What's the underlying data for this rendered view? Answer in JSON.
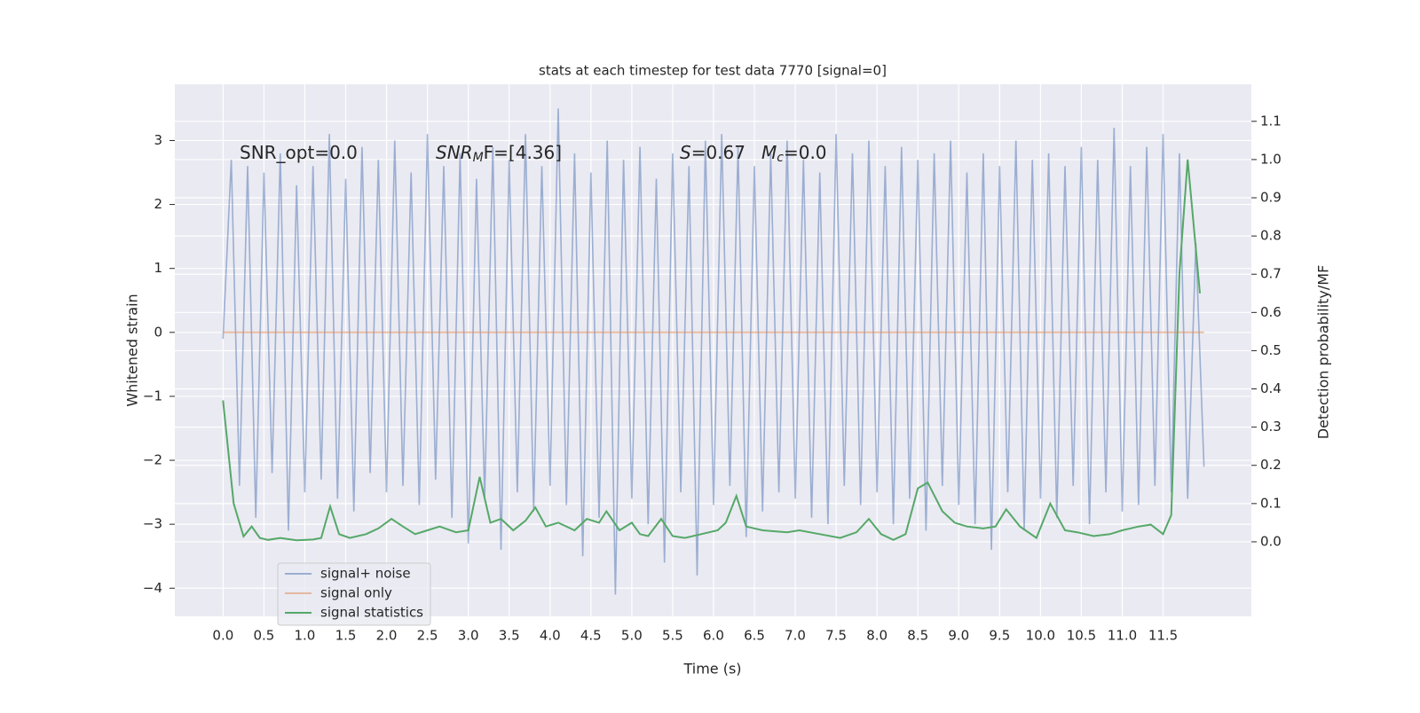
{
  "chart_data": {
    "type": "line",
    "title": "stats at each timestep for test data 7770 [signal=0]",
    "xlabel": "Time (s)",
    "ylabel": "Whitened strain",
    "y2label": "Detection probability/MF",
    "annotations": [
      {
        "text": "SNR_opt=0.0"
      },
      {
        "base": "SNR",
        "sub": "M",
        "rest": "F=[4.36]"
      },
      {
        "base": "S",
        "rest": "=0.67"
      },
      {
        "base": "M",
        "sub": "c",
        "rest": "=0.0"
      }
    ],
    "xlim": [
      -0.59,
      12.58
    ],
    "ylim": [
      -4.44,
      3.88
    ],
    "y2lim": [
      -0.195,
      1.197
    ],
    "xticks": [
      {
        "value": 0,
        "label": "0.0"
      },
      0.5,
      {
        "value": 1,
        "label": "1.0"
      },
      1.5,
      {
        "value": 2,
        "label": "2.0"
      },
      2.5,
      {
        "value": 3,
        "label": "3.0"
      },
      3.5,
      {
        "value": 4,
        "label": "4.0"
      },
      4.5,
      {
        "value": 5,
        "label": "5.0"
      },
      5.5,
      {
        "value": 6,
        "label": "6.0"
      },
      6.5,
      {
        "value": 7,
        "label": "7.0"
      },
      7.5,
      {
        "value": 8,
        "label": "8.0"
      },
      8.5,
      {
        "value": 9,
        "label": "9.0"
      },
      9.5,
      {
        "value": 10,
        "label": "10.0"
      },
      10.5,
      {
        "value": 11,
        "label": "11.0"
      },
      11.5
    ],
    "yticks": [
      {
        "value": -4,
        "label": "−4"
      },
      {
        "value": -3,
        "label": "−3"
      },
      {
        "value": -2,
        "label": "−2"
      },
      {
        "value": -1,
        "label": "−1"
      },
      0,
      1,
      2,
      3
    ],
    "y2ticks": [
      {
        "value": 0,
        "label": "0.0"
      },
      0.1,
      0.2,
      0.3,
      0.4,
      0.5,
      0.6,
      0.7,
      0.8,
      0.9,
      {
        "value": 1,
        "label": "1.0"
      },
      1.1
    ],
    "grid": true,
    "legend": "lower left",
    "series": [
      {
        "name": "signal+ noise",
        "color": "#4c72b0",
        "opacity": 0.5,
        "axis": "y",
        "x": [
          0,
          0.1,
          0.2,
          0.3,
          0.4,
          0.5,
          0.6,
          0.7,
          0.8,
          0.9,
          1,
          1.1,
          1.2,
          1.3,
          1.4,
          1.5,
          1.6,
          1.7,
          1.8,
          1.9,
          2,
          2.1,
          2.2,
          2.3,
          2.4,
          2.5,
          2.6,
          2.7,
          2.8,
          2.9,
          3,
          3.1,
          3.2,
          3.3,
          3.4,
          3.5,
          3.6,
          3.7,
          3.8,
          3.9,
          4,
          4.1,
          4.2,
          4.3,
          4.4,
          4.5,
          4.6,
          4.7,
          4.8,
          4.9,
          5,
          5.1,
          5.2,
          5.3,
          5.4,
          5.5,
          5.6,
          5.7,
          5.8,
          5.9,
          6,
          6.1,
          6.2,
          6.3,
          6.4,
          6.5,
          6.6,
          6.7,
          6.8,
          6.9,
          7,
          7.1,
          7.2,
          7.3,
          7.4,
          7.5,
          7.6,
          7.7,
          7.8,
          7.9,
          8,
          8.1,
          8.2,
          8.3,
          8.4,
          8.5,
          8.6,
          8.7,
          8.8,
          8.9,
          9,
          9.1,
          9.2,
          9.3,
          9.4,
          9.5,
          9.6,
          9.7,
          9.8,
          9.9,
          10,
          10.1,
          10.2,
          10.3,
          10.4,
          10.5,
          10.6,
          10.7,
          10.8,
          10.9,
          11,
          11.1,
          11.2,
          11.3,
          11.4,
          11.5,
          11.6,
          11.7,
          11.8,
          11.9,
          12
        ],
        "values": [
          -0.1,
          2.7,
          -2.4,
          2.6,
          -2.9,
          2.5,
          -2.2,
          2.8,
          -3.1,
          2.3,
          -2.5,
          2.6,
          -2.3,
          3.1,
          -2.6,
          2.4,
          -2.8,
          2.9,
          -2.2,
          2.7,
          -2.5,
          3.0,
          -2.4,
          2.5,
          -2.7,
          3.1,
          -2.3,
          2.6,
          -2.9,
          2.8,
          -3.3,
          2.4,
          -2.6,
          2.9,
          -3.4,
          2.7,
          -2.5,
          3.1,
          -2.8,
          2.6,
          -2.4,
          3.5,
          -2.7,
          2.8,
          -3.5,
          2.5,
          -2.9,
          3.0,
          -4.1,
          2.7,
          -2.6,
          2.9,
          -3.0,
          2.4,
          -3.6,
          2.8,
          -2.5,
          2.6,
          -3.8,
          3.0,
          -2.7,
          3.1,
          -2.4,
          2.9,
          -3.2,
          2.6,
          -2.8,
          2.8,
          -2.5,
          3.0,
          -2.6,
          2.7,
          -2.9,
          2.5,
          -3.0,
          3.1,
          -2.4,
          2.8,
          -2.7,
          3.0,
          -2.5,
          2.6,
          -3.0,
          2.9,
          -2.6,
          2.7,
          -3.1,
          2.8,
          -2.4,
          3.0,
          -2.7,
          2.5,
          -3.0,
          2.8,
          -3.4,
          2.6,
          -2.5,
          3.0,
          -3.1,
          2.7,
          -2.6,
          2.8,
          -2.9,
          2.6,
          -2.4,
          2.9,
          -3.0,
          2.7,
          -2.5,
          3.2,
          -2.8,
          2.6,
          -2.7,
          2.9,
          -2.4,
          3.1,
          -2.5,
          2.8,
          -2.6,
          1.4,
          -2.1
        ]
      },
      {
        "name": "signal only",
        "color": "#dd8452",
        "opacity": 0.5,
        "axis": "y",
        "x": [
          0,
          12
        ],
        "values": [
          0,
          0
        ]
      },
      {
        "name": "signal statistics",
        "color": "#55a868",
        "opacity": 1,
        "axis": "y2",
        "x": [
          0,
          0.13,
          0.25,
          0.35,
          0.45,
          0.55,
          0.7,
          0.9,
          1.1,
          1.2,
          1.31,
          1.42,
          1.55,
          1.75,
          1.9,
          2.06,
          2.2,
          2.35,
          2.5,
          2.65,
          2.85,
          3.0,
          3.14,
          3.27,
          3.4,
          3.55,
          3.7,
          3.82,
          3.95,
          4.1,
          4.3,
          4.45,
          4.6,
          4.69,
          4.85,
          5.0,
          5.1,
          5.2,
          5.36,
          5.5,
          5.65,
          5.85,
          6.05,
          6.15,
          6.28,
          6.4,
          6.6,
          6.9,
          7.05,
          7.3,
          7.55,
          7.75,
          7.9,
          8.05,
          8.2,
          8.35,
          8.5,
          8.62,
          8.8,
          8.95,
          9.1,
          9.3,
          9.45,
          9.58,
          9.75,
          9.95,
          10.12,
          10.3,
          10.45,
          10.65,
          10.85,
          11.0,
          11.2,
          11.35,
          11.5,
          11.6,
          11.7,
          11.8,
          11.95
        ],
        "values": [
          0.37,
          0.1,
          0.014,
          0.04,
          0.01,
          0.005,
          0.01,
          0.004,
          0.006,
          0.01,
          0.093,
          0.02,
          0.01,
          0.02,
          0.035,
          0.06,
          0.04,
          0.02,
          0.03,
          0.04,
          0.025,
          0.03,
          0.17,
          0.05,
          0.06,
          0.03,
          0.055,
          0.09,
          0.04,
          0.05,
          0.03,
          0.06,
          0.05,
          0.08,
          0.03,
          0.05,
          0.02,
          0.015,
          0.06,
          0.015,
          0.01,
          0.02,
          0.03,
          0.05,
          0.12,
          0.04,
          0.03,
          0.025,
          0.03,
          0.02,
          0.01,
          0.025,
          0.06,
          0.02,
          0.005,
          0.02,
          0.14,
          0.155,
          0.08,
          0.05,
          0.04,
          0.035,
          0.04,
          0.085,
          0.04,
          0.01,
          0.1,
          0.03,
          0.025,
          0.015,
          0.02,
          0.03,
          0.04,
          0.045,
          0.02,
          0.07,
          0.7,
          1.0,
          0.65
        ]
      }
    ]
  }
}
